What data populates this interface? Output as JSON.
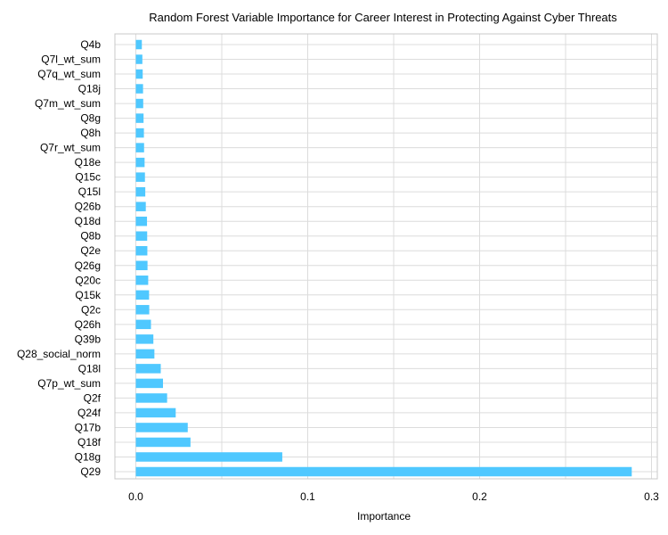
{
  "chart_data": {
    "type": "bar",
    "orientation": "horizontal",
    "title": "Random Forest Variable Importance for Career Interest in Protecting Against Cyber Threats",
    "xlabel": "Importance",
    "ylabel": "",
    "xlim": [
      -0.012,
      0.302
    ],
    "xticks": [
      0.0,
      0.1,
      0.2,
      0.3
    ],
    "xtick_labels": [
      "0.0",
      "0.1",
      "0.2",
      "0.3"
    ],
    "grid": true,
    "bar_color": "#4fc8ff",
    "categories": [
      "Q4b",
      "Q7l_wt_sum",
      "Q7q_wt_sum",
      "Q18j",
      "Q7m_wt_sum",
      "Q8g",
      "Q8h",
      "Q7r_wt_sum",
      "Q18e",
      "Q15c",
      "Q15l",
      "Q26b",
      "Q18d",
      "Q8b",
      "Q2e",
      "Q26g",
      "Q20c",
      "Q15k",
      "Q2c",
      "Q26h",
      "Q39b",
      "Q28_social_norm",
      "Q18l",
      "Q7p_wt_sum",
      "Q2f",
      "Q24f",
      "Q17b",
      "Q18f",
      "Q18g",
      "Q29"
    ],
    "values": [
      0.0035,
      0.0038,
      0.004,
      0.0042,
      0.0043,
      0.0045,
      0.0047,
      0.0048,
      0.0051,
      0.0053,
      0.0055,
      0.0058,
      0.0065,
      0.0066,
      0.0067,
      0.0068,
      0.0072,
      0.0077,
      0.0078,
      0.0088,
      0.0102,
      0.0108,
      0.0145,
      0.0158,
      0.0182,
      0.0232,
      0.0302,
      0.0318,
      0.0852,
      0.2885
    ]
  }
}
